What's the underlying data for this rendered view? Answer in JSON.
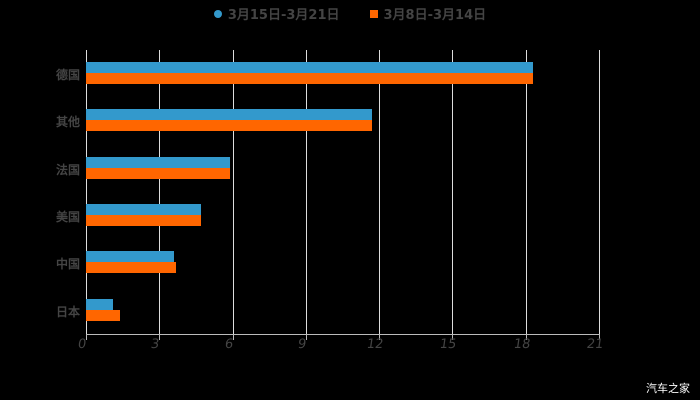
{
  "chart_data": {
    "type": "bar",
    "orientation": "horizontal",
    "title": "",
    "xlabel": "",
    "ylabel": "",
    "categories": [
      "德国",
      "其他",
      "法国",
      "美国",
      "中国",
      "日本"
    ],
    "series": [
      {
        "name": "3月15日-3月21日",
        "color": "#3399CC",
        "values": [
          18.3,
          11.7,
          5.9,
          4.7,
          3.6,
          1.1
        ]
      },
      {
        "name": "3月8日-3月14日",
        "color": "#FF6600",
        "values": [
          18.3,
          11.7,
          5.9,
          4.7,
          3.7,
          1.4
        ]
      }
    ],
    "xlim": [
      0,
      21
    ],
    "xticks": [
      0,
      3,
      6,
      9,
      12,
      15,
      18,
      21
    ],
    "grid": "vertical",
    "legend_position": "top"
  },
  "legend": {
    "items": [
      {
        "label": "3月15日-3月21日",
        "color": "#3399CC",
        "marker": "circle"
      },
      {
        "label": "3月8日-3月14日",
        "color": "#FF6600",
        "marker": "square"
      }
    ]
  },
  "xaxis": {
    "ticks": [
      "0",
      "3",
      "6",
      "9",
      "12",
      "15",
      "18",
      "21"
    ]
  },
  "yaxis": {
    "labels": [
      "德国",
      "其他",
      "法国",
      "美国",
      "中国",
      "日本"
    ]
  },
  "watermark": "汽车之家"
}
